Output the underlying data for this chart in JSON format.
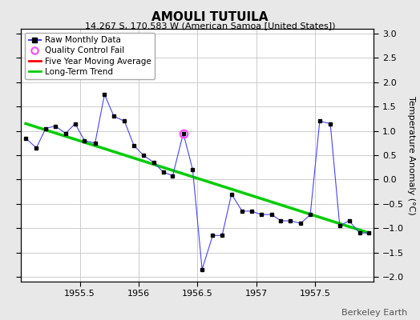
{
  "title": "AMOULI TUTUILA",
  "subtitle": "14.267 S, 170.583 W (American Samoa [United States])",
  "ylabel": "Temperature Anomaly (°C)",
  "watermark": "Berkeley Earth",
  "xlim": [
    1955.0,
    1958.0
  ],
  "ylim": [
    -2.1,
    3.1
  ],
  "yticks": [
    -2,
    -1.5,
    -1,
    -0.5,
    0,
    0.5,
    1,
    1.5,
    2,
    2.5,
    3
  ],
  "xticks": [
    1955.5,
    1956,
    1956.5,
    1957,
    1957.5
  ],
  "raw_x": [
    1955.04,
    1955.13,
    1955.21,
    1955.29,
    1955.38,
    1955.46,
    1955.54,
    1955.63,
    1955.71,
    1955.79,
    1955.88,
    1955.96,
    1956.04,
    1956.13,
    1956.21,
    1956.29,
    1956.38,
    1956.46,
    1956.54,
    1956.63,
    1956.71,
    1956.79,
    1956.88,
    1956.96,
    1957.04,
    1957.13,
    1957.21,
    1957.29,
    1957.38,
    1957.46,
    1957.54,
    1957.63,
    1957.71,
    1957.79,
    1957.88,
    1957.96
  ],
  "raw_y": [
    0.85,
    0.65,
    1.05,
    1.1,
    0.95,
    1.15,
    0.8,
    0.75,
    1.75,
    1.3,
    1.2,
    0.7,
    0.5,
    0.35,
    0.15,
    0.08,
    0.95,
    0.2,
    -1.85,
    -1.15,
    -1.15,
    -0.3,
    -0.65,
    -0.65,
    -0.72,
    -0.72,
    -0.85,
    -0.85,
    -0.9,
    -0.72,
    1.2,
    1.15,
    -0.95,
    -0.85,
    -1.1,
    -1.1
  ],
  "qc_fail_x": [
    1956.38
  ],
  "qc_fail_y": [
    0.95
  ],
  "trend_x": [
    1955.04,
    1957.96
  ],
  "trend_y": [
    1.15,
    -1.1
  ],
  "background_color": "#e8e8e8",
  "plot_bg_color": "#ffffff",
  "raw_line_color": "#4444ff",
  "raw_marker_color": "#000000",
  "qc_color": "#ff44ff",
  "trend_color": "#00cc00",
  "moving_avg_color": "#ff0000",
  "grid_color": "#cccccc",
  "title_fontsize": 11,
  "subtitle_fontsize": 8,
  "tick_fontsize": 8,
  "ylabel_fontsize": 8,
  "legend_fontsize": 7.5,
  "watermark_fontsize": 8
}
